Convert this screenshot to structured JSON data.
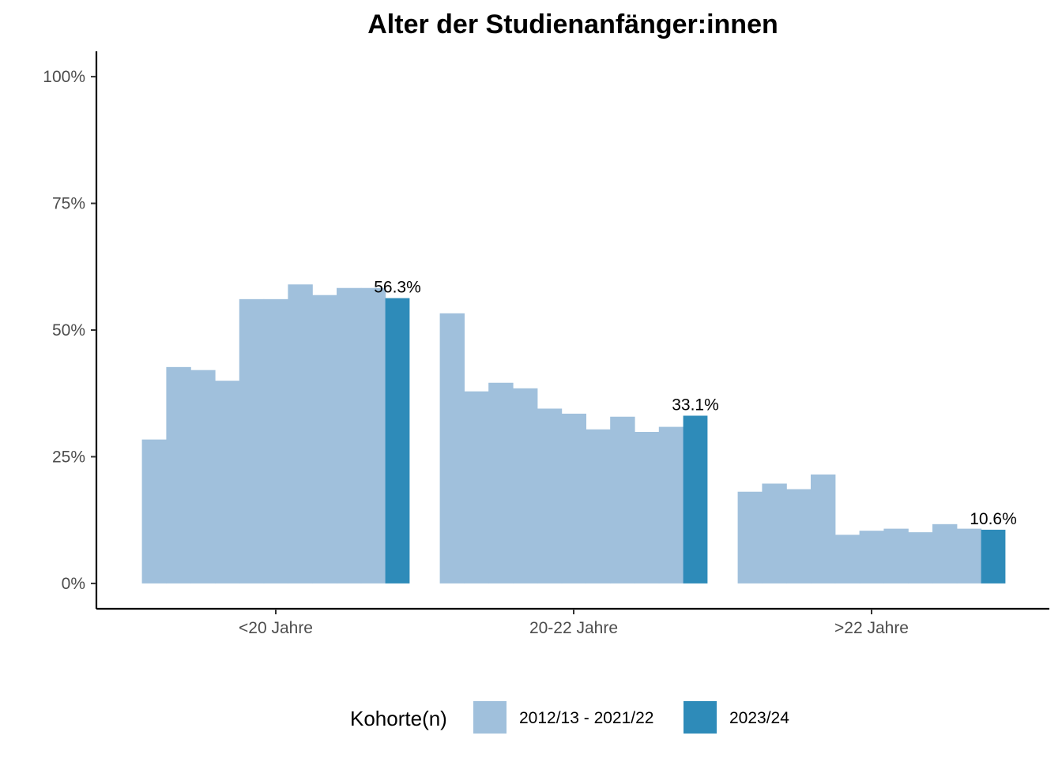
{
  "chart_data": {
    "type": "bar",
    "title": "Alter der Studienanfänger:innen",
    "xlabel": "",
    "ylabel": "",
    "ylim": [
      -0.05,
      1.05
    ],
    "y_ticks": [
      0,
      0.25,
      0.5,
      0.75,
      1.0
    ],
    "y_tick_labels": [
      "0%",
      "25%",
      "50%",
      "75%",
      "100%"
    ],
    "categories": [
      "<20 Jahre",
      "20-22 Jahre",
      ">22 Jahre"
    ],
    "series": [
      {
        "name": "2012/13 - 2021/22",
        "color": "#a0c0dc",
        "values": [
          [
            0.284,
            0.427,
            0.421,
            0.4,
            0.561,
            0.561,
            0.59,
            0.569,
            0.583,
            0.583
          ],
          [
            0.533,
            0.379,
            0.396,
            0.385,
            0.345,
            0.335,
            0.304,
            0.329,
            0.299,
            0.309
          ],
          [
            0.181,
            0.197,
            0.186,
            0.215,
            0.096,
            0.104,
            0.108,
            0.101,
            0.117,
            0.108
          ]
        ]
      },
      {
        "name": "2023/24",
        "color": "#2e8bb9",
        "values": [
          0.563,
          0.331,
          0.106
        ],
        "labels": [
          "56.3%",
          "33.1%",
          "10.6%"
        ]
      }
    ],
    "grid": false,
    "legend": {
      "title": "Kohorte(n)",
      "position": "bottom"
    }
  }
}
